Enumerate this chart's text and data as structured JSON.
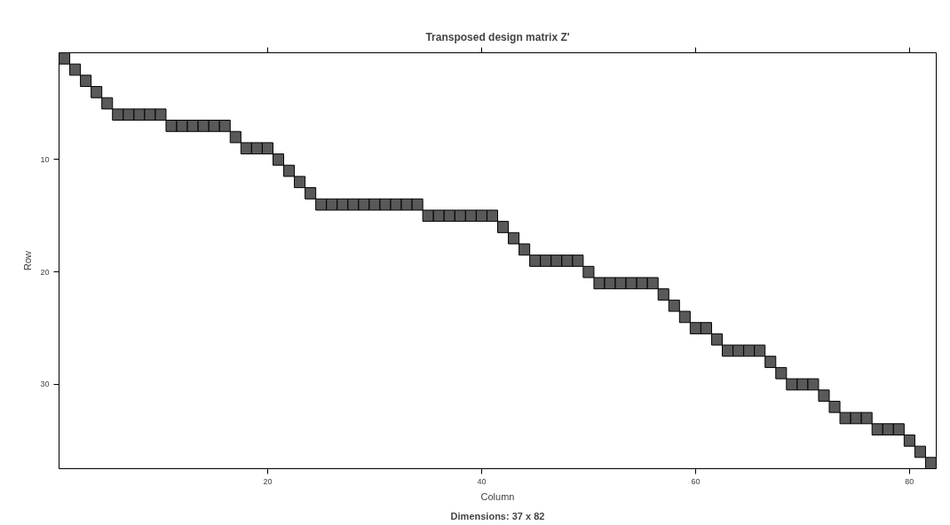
{
  "chart_data": {
    "type": "scatter",
    "title": "Transposed design matrix Z'",
    "xlabel": "Column",
    "ylabel": "Row",
    "annotations": [
      "Dimensions: 37 x 82"
    ],
    "x": [
      1,
      2,
      3,
      4,
      5,
      6,
      7,
      8,
      9,
      10,
      11,
      12,
      13,
      14,
      15,
      16,
      17,
      18,
      19,
      20,
      21,
      22,
      23,
      24,
      25,
      26,
      27,
      28,
      29,
      30,
      31,
      32,
      33,
      34,
      35,
      36,
      37,
      38,
      39,
      40,
      41,
      42,
      43,
      44,
      45,
      46,
      47,
      48,
      49,
      50,
      51,
      52,
      53,
      54,
      55,
      56,
      57,
      58,
      59,
      60,
      61,
      62,
      63,
      64,
      65,
      66,
      67,
      68,
      69,
      70,
      71,
      72,
      73,
      74,
      75,
      76,
      77,
      78,
      79,
      80,
      81,
      82
    ],
    "series": [
      {
        "color": "#595959",
        "values": [
          1,
          2,
          3,
          4,
          5,
          6,
          6,
          6,
          6,
          6,
          7,
          7,
          7,
          7,
          7,
          7,
          8,
          9,
          9,
          9,
          10,
          11,
          12,
          13,
          14,
          14,
          14,
          14,
          14,
          14,
          14,
          14,
          14,
          14,
          15,
          15,
          15,
          15,
          15,
          15,
          15,
          16,
          17,
          18,
          19,
          19,
          19,
          19,
          19,
          20,
          21,
          21,
          21,
          21,
          21,
          21,
          22,
          23,
          24,
          25,
          25,
          26,
          27,
          27,
          27,
          27,
          28,
          29,
          30,
          30,
          30,
          31,
          32,
          33,
          33,
          33,
          34,
          34,
          34,
          35,
          36,
          37
        ]
      }
    ],
    "marker": "square",
    "grid": false,
    "xlim": [
      0.5,
      82.5
    ],
    "ylim": [
      37.5,
      0.5
    ],
    "xticks": [
      20,
      40,
      60,
      80
    ],
    "yticks": [
      10,
      20,
      30
    ]
  }
}
